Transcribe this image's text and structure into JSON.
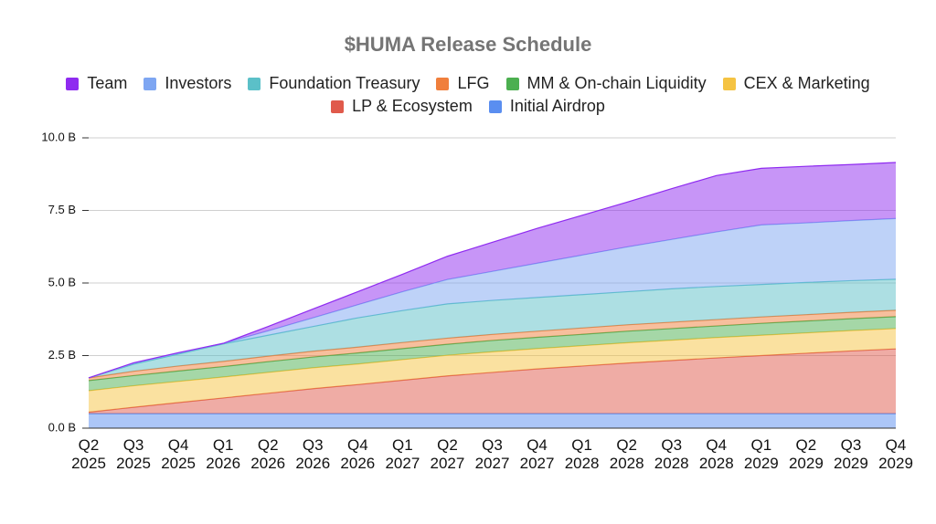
{
  "chart_data": {
    "type": "stacked-area",
    "title": "$HUMA Release Schedule",
    "categories": [
      "Q2 2025",
      "Q3 2025",
      "Q4 2025",
      "Q1 2026",
      "Q2 2026",
      "Q3 2026",
      "Q4 2026",
      "Q1 2027",
      "Q2 2027",
      "Q3 2027",
      "Q4 2027",
      "Q1 2028",
      "Q2 2028",
      "Q3 2028",
      "Q4 2028",
      "Q1 2029",
      "Q2 2029",
      "Q3 2029",
      "Q4 2029"
    ],
    "series": [
      {
        "name": "Team",
        "color": "#8f2bf0",
        "values": [
          0,
          0.02,
          0.02,
          0,
          0.15,
          0.3,
          0.45,
          0.6,
          0.8,
          1.0,
          1.2,
          1.37,
          1.54,
          1.75,
          1.94,
          1.95,
          1.95,
          1.93,
          1.93
        ]
      },
      {
        "name": "Investors",
        "color": "#7ea6f2",
        "values": [
          0,
          0.03,
          0.03,
          0.02,
          0.15,
          0.3,
          0.45,
          0.65,
          0.84,
          1.0,
          1.18,
          1.36,
          1.54,
          1.7,
          1.88,
          2.05,
          2.05,
          2.07,
          2.09
        ]
      },
      {
        "name": "Foundation Treasury",
        "color": "#5bc0c8",
        "values": [
          0,
          0.24,
          0.41,
          0.6,
          0.72,
          0.85,
          1.01,
          1.1,
          1.18,
          1.17,
          1.16,
          1.15,
          1.14,
          1.15,
          1.14,
          1.12,
          1.11,
          1.09,
          1.07
        ]
      },
      {
        "name": "LFG",
        "color": "#f07f3c",
        "values": [
          0.09,
          0.15,
          0.17,
          0.18,
          0.19,
          0.2,
          0.2,
          0.21,
          0.21,
          0.21,
          0.21,
          0.22,
          0.22,
          0.22,
          0.22,
          0.22,
          0.22,
          0.22,
          0.22
        ]
      },
      {
        "name": "MM & On-chain Liquidity",
        "color": "#4caf50",
        "values": [
          0.35,
          0.35,
          0.36,
          0.36,
          0.37,
          0.37,
          0.38,
          0.38,
          0.38,
          0.39,
          0.39,
          0.39,
          0.4,
          0.4,
          0.4,
          0.41,
          0.41,
          0.41,
          0.41
        ]
      },
      {
        "name": "CEX & Marketing",
        "color": "#f5c342",
        "values": [
          0.74,
          0.74,
          0.73,
          0.72,
          0.72,
          0.72,
          0.71,
          0.71,
          0.71,
          0.71,
          0.7,
          0.7,
          0.7,
          0.7,
          0.7,
          0.7,
          0.7,
          0.7,
          0.7
        ]
      },
      {
        "name": "LP & Ecosystem",
        "color": "#e05a4b",
        "values": [
          0.05,
          0.22,
          0.38,
          0.54,
          0.7,
          0.86,
          1.0,
          1.15,
          1.3,
          1.42,
          1.54,
          1.64,
          1.74,
          1.83,
          1.92,
          2.0,
          2.08,
          2.16,
          2.23
        ]
      },
      {
        "name": "Initial Airdrop",
        "color": "#5a8ef0",
        "values": [
          0.5,
          0.5,
          0.5,
          0.5,
          0.5,
          0.5,
          0.5,
          0.5,
          0.5,
          0.5,
          0.5,
          0.5,
          0.5,
          0.5,
          0.5,
          0.5,
          0.5,
          0.5,
          0.5
        ]
      }
    ],
    "ylim": [
      0,
      10
    ],
    "yticks": [
      {
        "value": 0,
        "label": "0.0 B"
      },
      {
        "value": 2.5,
        "label": "2.5 B"
      },
      {
        "value": 5,
        "label": "5.0 B"
      },
      {
        "value": 7.5,
        "label": "7.5 B"
      },
      {
        "value": 10,
        "label": "10.0 B"
      }
    ],
    "grid": true
  }
}
